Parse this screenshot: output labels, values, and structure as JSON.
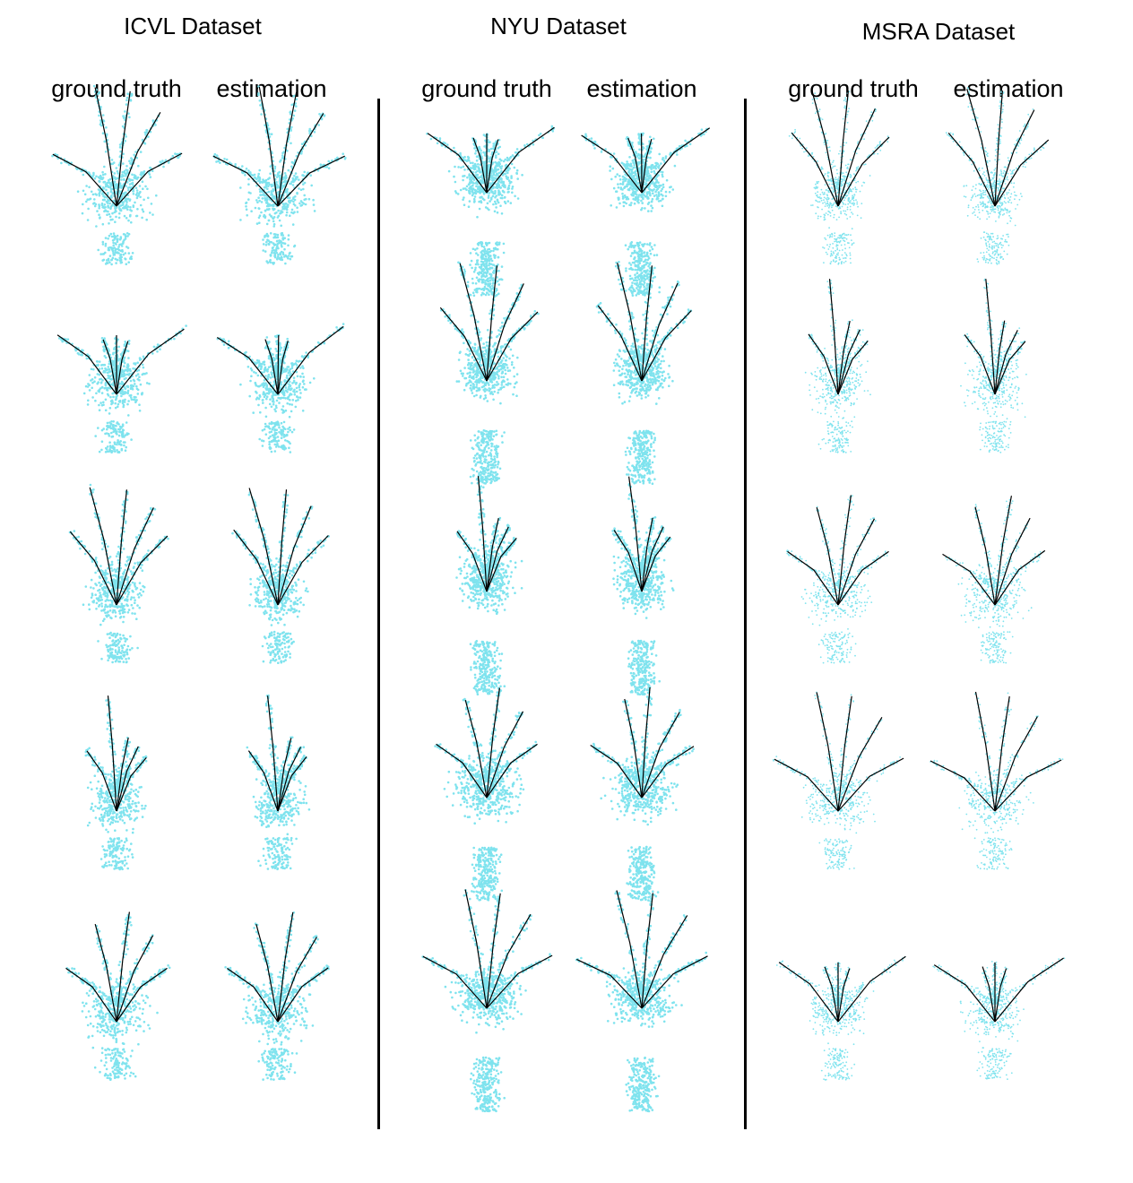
{
  "datasets": [
    {
      "title": "ICVL Dataset",
      "columns": [
        "ground truth",
        "estimation"
      ]
    },
    {
      "title": "NYU Dataset",
      "columns": [
        "ground truth",
        "estimation"
      ]
    },
    {
      "title": "MSRA Dataset",
      "columns": [
        "ground truth",
        "estimation"
      ]
    }
  ],
  "colors": {
    "point_cloud": "#7fe3ee",
    "skeleton": "#000000",
    "divider": "#000000"
  },
  "rows_per_dataset": 5
}
